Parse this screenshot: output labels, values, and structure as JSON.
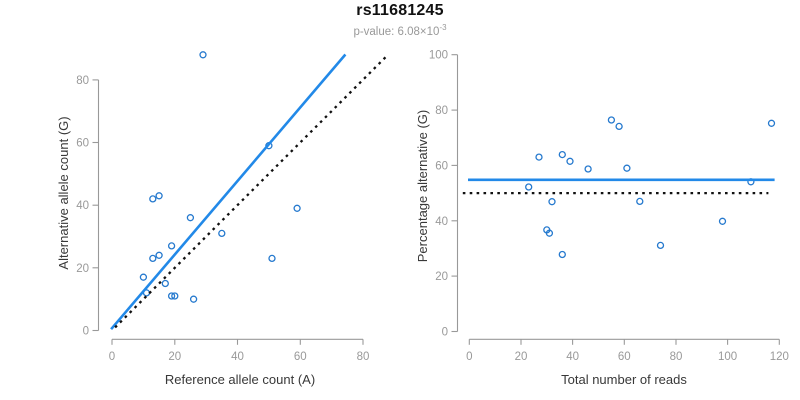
{
  "header": {
    "title": "rs11681245",
    "subtitle_base": "p-value: 6.08×10",
    "subtitle_exp": "-3"
  },
  "colors": {
    "point": "#2579CE",
    "solid_line": "#2289E8",
    "dotted_line": "#111111",
    "axis": "#999999",
    "axis_title": "#383838"
  },
  "chart_data": [
    {
      "id": "allele-counts-scatter",
      "type": "scatter",
      "xlabel": "Reference allele count (A)",
      "ylabel": "Alternative allele count (G)",
      "xlim": [
        0,
        80
      ],
      "ylim": [
        0,
        80
      ],
      "xticks": [
        0,
        20,
        40,
        60,
        80
      ],
      "yticks": [
        0,
        20,
        40,
        60,
        80
      ],
      "grid": false,
      "legend": false,
      "points": [
        [
          10,
          17
        ],
        [
          11,
          12
        ],
        [
          13,
          23
        ],
        [
          13,
          42
        ],
        [
          15,
          24
        ],
        [
          15,
          43
        ],
        [
          17,
          15
        ],
        [
          19,
          11
        ],
        [
          19,
          27
        ],
        [
          20,
          11
        ],
        [
          25,
          36
        ],
        [
          26,
          10
        ],
        [
          29,
          88
        ],
        [
          35,
          31
        ],
        [
          50,
          59
        ],
        [
          51,
          23
        ],
        [
          59,
          39
        ]
      ],
      "lines": [
        {
          "name": "fitted-proportion-line",
          "style": "solid",
          "x1": -0.3,
          "y1": 0.4,
          "x2": 74.4,
          "y2": 88.1
        },
        {
          "name": "identity-line",
          "style": "dotted",
          "x1": 1,
          "y1": 1,
          "x2": 87.6,
          "y2": 87.6
        }
      ]
    },
    {
      "id": "percentage-vs-coverage-scatter",
      "type": "scatter",
      "xlabel": "Total number of reads",
      "ylabel": "Percentage alternative (G)",
      "xlim": [
        0,
        120
      ],
      "ylim": [
        0,
        100
      ],
      "xticks": [
        0,
        20,
        40,
        60,
        80,
        100,
        120
      ],
      "yticks": [
        0,
        20,
        40,
        60,
        80,
        100
      ],
      "grid": false,
      "legend": false,
      "points": [
        [
          23,
          52.2
        ],
        [
          27,
          63.0
        ],
        [
          30,
          36.7
        ],
        [
          31,
          35.5
        ],
        [
          32,
          46.9
        ],
        [
          36,
          27.8
        ],
        [
          36,
          63.9
        ],
        [
          39,
          61.5
        ],
        [
          46,
          58.7
        ],
        [
          55,
          76.4
        ],
        [
          58,
          74.1
        ],
        [
          61,
          59.0
        ],
        [
          66,
          47.0
        ],
        [
          74,
          31.1
        ],
        [
          98,
          39.8
        ],
        [
          109,
          54.1
        ],
        [
          117,
          75.2
        ]
      ],
      "lines": [
        {
          "name": "mean-percentage-line",
          "style": "solid",
          "x1": -0.5,
          "y1": 54.8,
          "x2": 118.2,
          "y2": 54.8
        },
        {
          "name": "fifty-percent-line",
          "style": "dotted",
          "x1": -2.5,
          "y1": 50,
          "x2": 115.8,
          "y2": 50
        }
      ]
    }
  ]
}
